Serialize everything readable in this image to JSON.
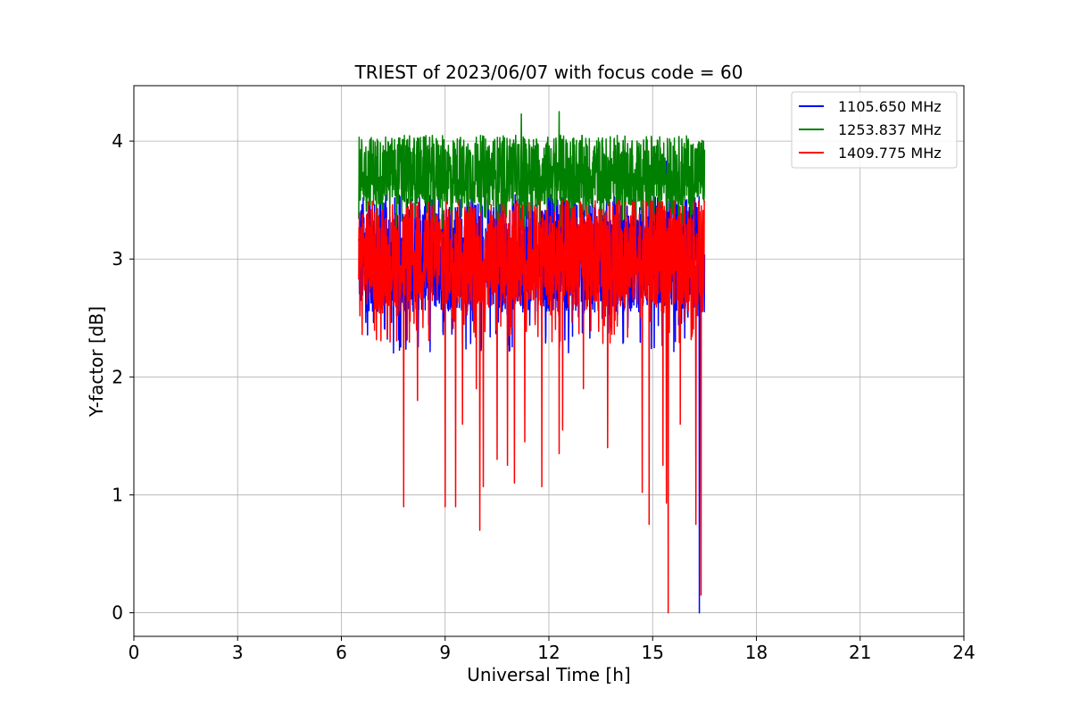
{
  "chart_data": {
    "type": "line",
    "title": "TRIEST of 2023/06/07 with focus code = 60",
    "xlabel": "Universal Time [h]",
    "ylabel": "Y-factor [dB]",
    "xlim": [
      0,
      24
    ],
    "ylim": [
      -0.2,
      4.47
    ],
    "xticks": [
      0,
      3,
      6,
      9,
      12,
      15,
      18,
      21,
      24
    ],
    "yticks": [
      0,
      1,
      2,
      3,
      4
    ],
    "grid": true,
    "legend_position": "upper right",
    "series": [
      {
        "name": "1105.650 MHz",
        "color": "#0000ff",
        "band": {
          "x_start": 6.5,
          "x_end": 16.5,
          "upper": 3.55,
          "lower": 2.55
        },
        "extremes": [
          [
            15.4,
            3.83
          ],
          [
            16.35,
            0.0
          ],
          [
            12.6,
            3.6
          ]
        ]
      },
      {
        "name": "1253.837 MHz",
        "color": "#008000",
        "band": {
          "x_start": 6.5,
          "x_end": 16.5,
          "upper": 4.05,
          "lower": 3.45
        },
        "extremes": [
          [
            11.2,
            4.23
          ],
          [
            12.3,
            4.25
          ],
          [
            9.2,
            3.2
          ]
        ]
      },
      {
        "name": "1409.775 MHz",
        "color": "#ff0000",
        "band": {
          "x_start": 6.5,
          "x_end": 16.5,
          "upper": 3.5,
          "lower": 2.6
        },
        "dips": [
          [
            6.6,
            2.36
          ],
          [
            7.8,
            0.9
          ],
          [
            8.2,
            1.8
          ],
          [
            9.0,
            0.9
          ],
          [
            9.3,
            0.9
          ],
          [
            9.5,
            1.6
          ],
          [
            9.9,
            1.9
          ],
          [
            10.0,
            0.7
          ],
          [
            10.1,
            1.07
          ],
          [
            10.5,
            1.3
          ],
          [
            10.8,
            1.25
          ],
          [
            11.0,
            1.1
          ],
          [
            11.3,
            1.45
          ],
          [
            11.8,
            1.07
          ],
          [
            12.3,
            1.35
          ],
          [
            12.4,
            1.55
          ],
          [
            13.0,
            1.9
          ],
          [
            13.7,
            1.4
          ],
          [
            14.7,
            1.02
          ],
          [
            14.9,
            0.75
          ],
          [
            15.3,
            1.25
          ],
          [
            15.4,
            0.93
          ],
          [
            15.45,
            0.0
          ],
          [
            15.8,
            1.6
          ],
          [
            16.25,
            0.75
          ],
          [
            16.4,
            0.15
          ]
        ]
      }
    ]
  }
}
